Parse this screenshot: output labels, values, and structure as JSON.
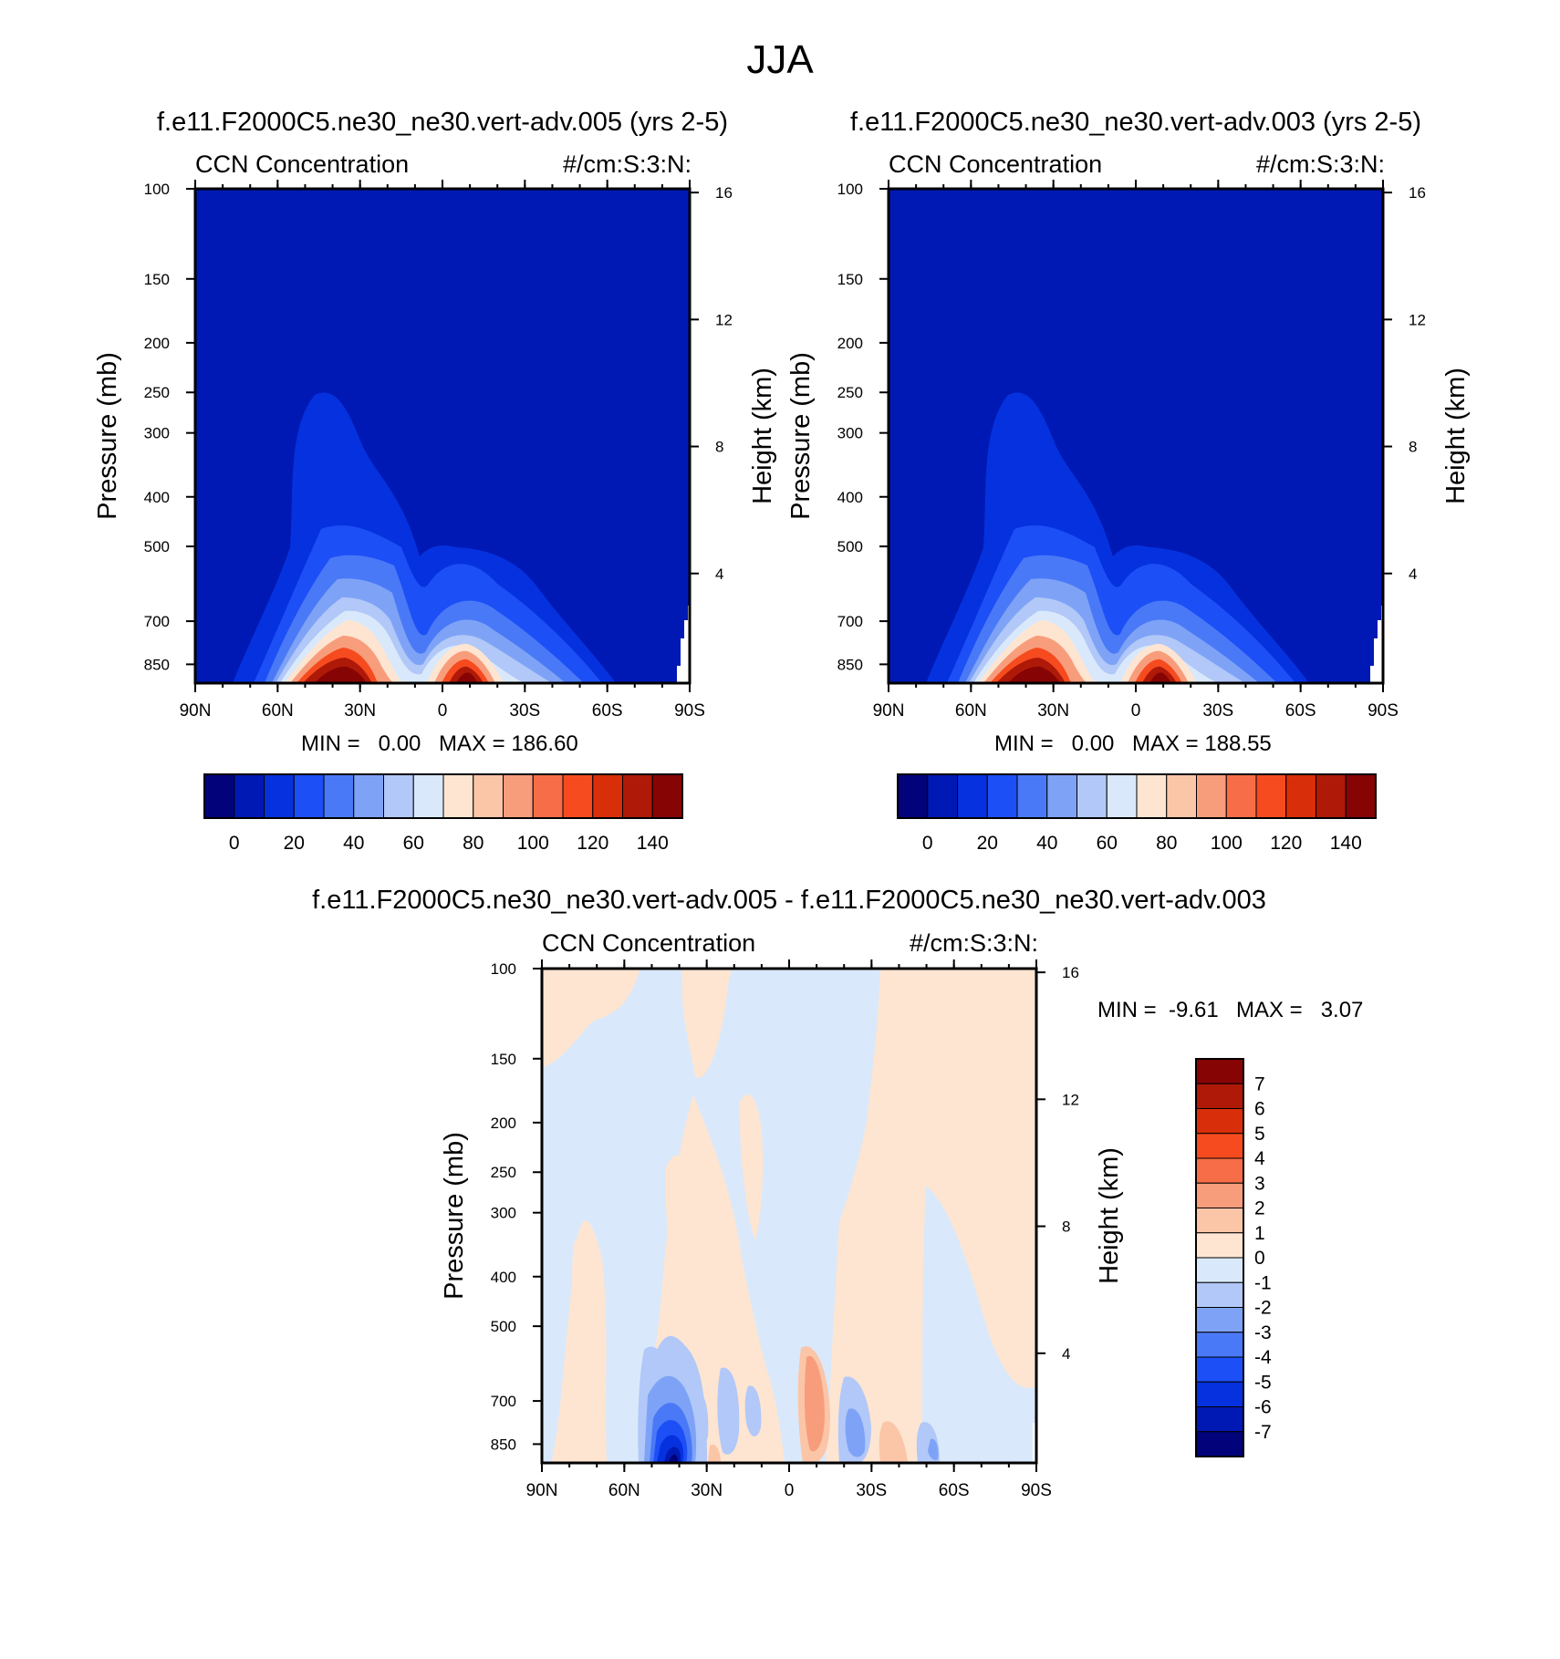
{
  "figure_title": "JJA",
  "chart_data": [
    {
      "type": "heatmap",
      "panel": "left",
      "title": "f.e11.F2000C5.ne30_ne30.vert-adv.005 (yrs 2-5)",
      "subtitle_left": "CCN Concentration",
      "subtitle_right": "#/cm:S:3:N:",
      "ylabel": "Pressure (mb)",
      "ylabel_right": "Height (km)",
      "x_ticks": [
        "90N",
        "60N",
        "30N",
        "0",
        "30S",
        "60S",
        "90S"
      ],
      "x_range": [
        90,
        -90
      ],
      "y_ticks": [
        "100",
        "150",
        "200",
        "250",
        "300",
        "400",
        "500",
        "700",
        "850"
      ],
      "y_range_mb": [
        100,
        925
      ],
      "y_scale": "log",
      "y_right_ticks": [
        "16",
        "12",
        "8",
        "4"
      ],
      "min_label": "MIN =   0.00",
      "max_label": "MAX = 186.60",
      "min": 0.0,
      "max": 186.6,
      "colorbar_orientation": "horizontal",
      "colorbar_labels": [
        "0",
        "20",
        "40",
        "60",
        "80",
        "100",
        "120",
        "140"
      ],
      "colorbar_levels": [
        0,
        10,
        20,
        30,
        40,
        50,
        60,
        70,
        80,
        90,
        100,
        110,
        120,
        130,
        140
      ],
      "colorbar_colors": [
        "#02037a",
        "#0119b4",
        "#0532de",
        "#1d4ff6",
        "#4a79f7",
        "#7ea3f6",
        "#b1c8f8",
        "#d9e9fb",
        "#fde5d2",
        "#fbc5a8",
        "#f89d7c",
        "#f76d48",
        "#f54b1f",
        "#d92e0a",
        "#ae1908",
        "#860404"
      ]
    },
    {
      "type": "heatmap",
      "panel": "right",
      "title": "f.e11.F2000C5.ne30_ne30.vert-adv.003 (yrs 2-5)",
      "subtitle_left": "CCN Concentration",
      "subtitle_right": "#/cm:S:3:N:",
      "ylabel": "Pressure (mb)",
      "ylabel_right": "Height (km)",
      "x_ticks": [
        "90N",
        "60N",
        "30N",
        "0",
        "30S",
        "60S",
        "90S"
      ],
      "x_range": [
        90,
        -90
      ],
      "y_ticks": [
        "100",
        "150",
        "200",
        "250",
        "300",
        "400",
        "500",
        "700",
        "850"
      ],
      "y_range_mb": [
        100,
        925
      ],
      "y_scale": "log",
      "y_right_ticks": [
        "16",
        "12",
        "8",
        "4"
      ],
      "min_label": "MIN =   0.00",
      "max_label": "MAX = 188.55",
      "min": 0.0,
      "max": 188.55,
      "colorbar_orientation": "horizontal",
      "colorbar_labels": [
        "0",
        "20",
        "40",
        "60",
        "80",
        "100",
        "120",
        "140"
      ],
      "colorbar_levels": [
        0,
        10,
        20,
        30,
        40,
        50,
        60,
        70,
        80,
        90,
        100,
        110,
        120,
        130,
        140
      ],
      "colorbar_colors": [
        "#02037a",
        "#0119b4",
        "#0532de",
        "#1d4ff6",
        "#4a79f7",
        "#7ea3f6",
        "#b1c8f8",
        "#d9e9fb",
        "#fde5d2",
        "#fbc5a8",
        "#f89d7c",
        "#f76d48",
        "#f54b1f",
        "#d92e0a",
        "#ae1908",
        "#860404"
      ]
    },
    {
      "type": "heatmap",
      "panel": "difference",
      "title": "f.e11.F2000C5.ne30_ne30.vert-adv.005 - f.e11.F2000C5.ne30_ne30.vert-adv.003",
      "subtitle_left": "CCN Concentration",
      "subtitle_right": "#/cm:S:3:N:",
      "ylabel": "Pressure (mb)",
      "ylabel_right": "Height (km)",
      "x_ticks": [
        "90N",
        "60N",
        "30N",
        "0",
        "30S",
        "60S",
        "90S"
      ],
      "x_range": [
        90,
        -90
      ],
      "y_ticks": [
        "100",
        "150",
        "200",
        "250",
        "300",
        "400",
        "500",
        "700",
        "850"
      ],
      "y_range_mb": [
        100,
        925
      ],
      "y_scale": "log",
      "y_right_ticks": [
        "16",
        "12",
        "8",
        "4"
      ],
      "min_label": "MIN =  -9.61",
      "max_label": "MAX =   3.07",
      "min": -9.61,
      "max": 3.07,
      "colorbar_orientation": "vertical",
      "colorbar_labels": [
        "7",
        "6",
        "5",
        "4",
        "3",
        "2",
        "1",
        "0",
        "-1",
        "-2",
        "-3",
        "-4",
        "-5",
        "-6",
        "-7"
      ],
      "colorbar_levels": [
        7,
        6,
        5,
        4,
        3,
        2,
        1,
        0,
        -1,
        -2,
        -3,
        -4,
        -5,
        -6,
        -7
      ],
      "colorbar_colors": [
        "#860404",
        "#ae1908",
        "#d92e0a",
        "#f54b1f",
        "#f76d48",
        "#f89d7c",
        "#fbc5a8",
        "#fde5d2",
        "#d9e9fb",
        "#b1c8f8",
        "#7ea3f6",
        "#4a79f7",
        "#1d4ff6",
        "#0532de",
        "#0119b4",
        "#02037a"
      ]
    }
  ]
}
